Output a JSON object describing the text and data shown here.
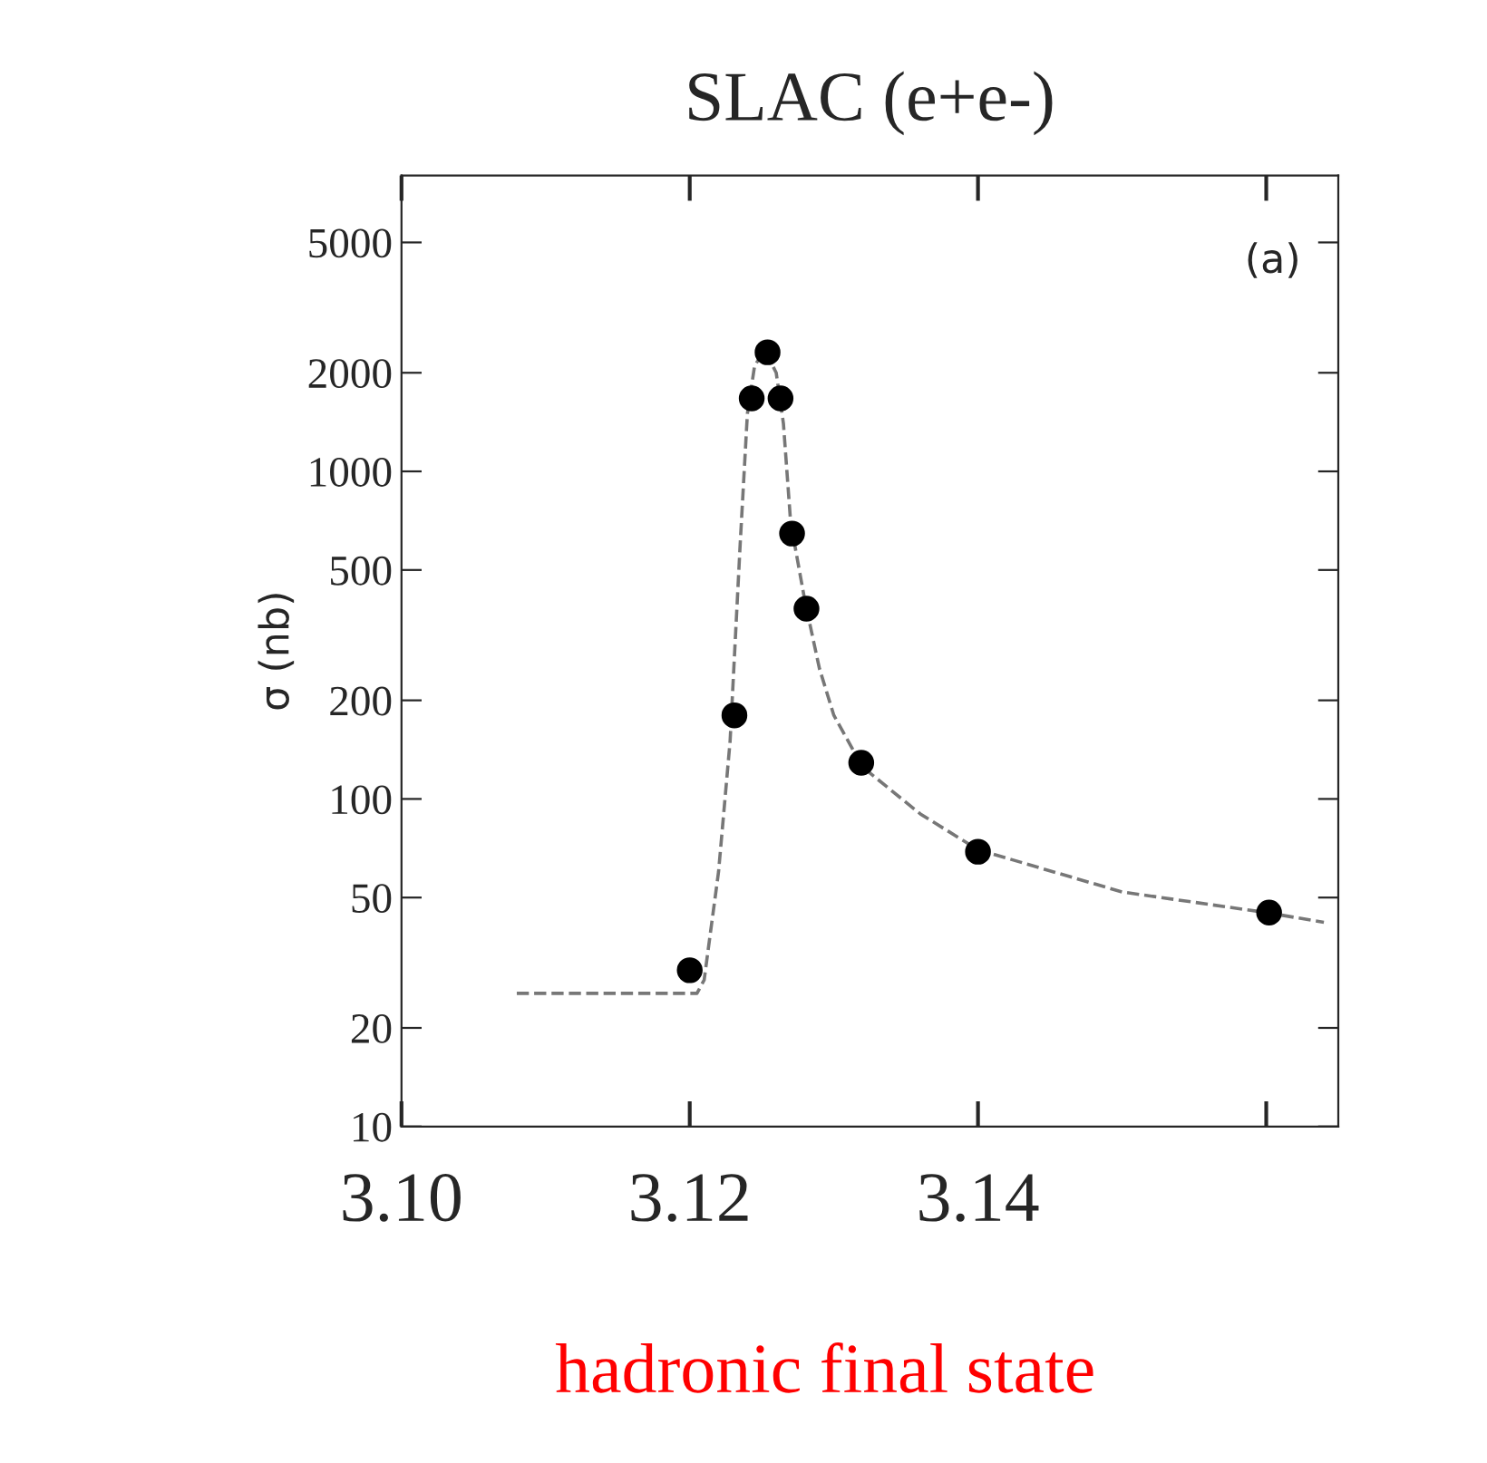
{
  "chart_data": {
    "type": "scatter",
    "title": "SLAC (e+e-)",
    "ylabel": "σ (nb)",
    "log": "y",
    "grid": false,
    "legend": false,
    "xlim": [
      3.1,
      3.165
    ],
    "xticks": [
      {
        "value": 3.1,
        "label": "3.10"
      },
      {
        "value": 3.12,
        "label": "3.12"
      },
      {
        "value": 3.14,
        "label": "3.14"
      },
      {
        "value": 3.16,
        "label": null
      }
    ],
    "ylim": [
      10,
      8000
    ],
    "yticks": [
      10,
      20,
      50,
      100,
      200,
      500,
      1000,
      2000,
      5000
    ],
    "annotations": [
      "(a)",
      "hadronic final state"
    ],
    "series": [
      {
        "type": "line",
        "color": "#777777",
        "line_style": "dashed",
        "marker": "none",
        "x": [
          3.108,
          3.1205,
          3.121,
          3.122,
          3.1228,
          3.1235,
          3.124,
          3.1245,
          3.1252,
          3.126,
          3.1265,
          3.127,
          3.128,
          3.129,
          3.13,
          3.132,
          3.136,
          3.14,
          3.15,
          3.16,
          3.164
        ],
        "values": [
          25.5,
          25.5,
          28,
          60,
          150,
          600,
          1500,
          2100,
          2350,
          2000,
          1400,
          700,
          400,
          250,
          180,
          125,
          90,
          70,
          52,
          45,
          42
        ]
      },
      {
        "color": "#000000",
        "marker": "circle",
        "x": [
          3.12,
          3.1231,
          3.1243,
          3.1254,
          3.1263,
          3.1271,
          3.1281,
          3.1319,
          3.14,
          3.1602
        ],
        "values": [
          30,
          180,
          1670,
          2310,
          1670,
          646,
          381,
          129,
          69,
          45
        ]
      }
    ]
  }
}
